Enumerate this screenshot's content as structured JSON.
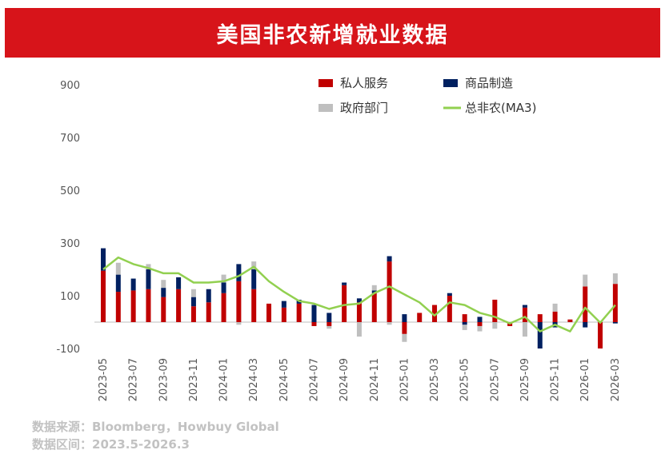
{
  "page": {
    "title": "美国非农新增就业数据"
  },
  "footer": {
    "source": "数据来源：Bloomberg，Howbuy Global",
    "range": "数据区间：2023.5-2026.3"
  },
  "colors": {
    "private": "#c00000",
    "goods": "#002060",
    "government": "#bfbfbf",
    "ma3": "#92d050",
    "title_bg": "#d7141a"
  },
  "chart_data": {
    "type": "bar",
    "stacked": true,
    "title": "美国非农新增就业数据",
    "ylim": [
      -100,
      900
    ],
    "yticks": [
      -100,
      100,
      300,
      500,
      700,
      900
    ],
    "legend_position": "top-right",
    "x": [
      "2023-05",
      "2023-06",
      "2023-07",
      "2023-08",
      "2023-09",
      "2023-10",
      "2023-11",
      "2023-12",
      "2024-01",
      "2024-02",
      "2024-03",
      "2024-04",
      "2024-05",
      "2024-06",
      "2024-07",
      "2024-08",
      "2024-09",
      "2024-10",
      "2024-11",
      "2024-12",
      "2025-01",
      "2025-02",
      "2025-03",
      "2025-04",
      "2025-05",
      "2025-06",
      "2025-07",
      "2025-08",
      "2025-09",
      "2025-10",
      "2025-11",
      "2025-12",
      "2026-01",
      "2026-02",
      "2026-03"
    ],
    "xtick_labels": [
      "2023-05",
      "2023-07",
      "2023-09",
      "2023-11",
      "2024-01",
      "2024-03",
      "2024-05",
      "2024-07",
      "2024-09",
      "2024-11",
      "2025-01",
      "2025-03",
      "2025-05",
      "2025-07",
      "2025-09",
      "2025-11",
      "2026-01",
      "2026-03"
    ],
    "series": [
      {
        "name": "私人服务",
        "values": [
          195,
          115,
          120,
          125,
          95,
          125,
          60,
          75,
          110,
          155,
          125,
          70,
          55,
          70,
          -15,
          -15,
          140,
          75,
          110,
          230,
          -45,
          35,
          65,
          100,
          30,
          -15,
          85,
          -15,
          55,
          30,
          40,
          10,
          135,
          -100,
          145
        ]
      },
      {
        "name": "商品制造",
        "values": [
          85,
          65,
          45,
          75,
          35,
          45,
          35,
          50,
          40,
          65,
          75,
          0,
          25,
          15,
          65,
          35,
          10,
          15,
          10,
          20,
          30,
          0,
          0,
          10,
          -10,
          20,
          0,
          0,
          10,
          -100,
          -20,
          0,
          -20,
          0,
          -5
        ]
      },
      {
        "name": "政府部门",
        "values": [
          0,
          45,
          0,
          20,
          30,
          0,
          30,
          0,
          30,
          -10,
          30,
          0,
          0,
          0,
          0,
          -10,
          0,
          -55,
          20,
          -10,
          -30,
          0,
          0,
          0,
          -20,
          -20,
          -25,
          0,
          -55,
          0,
          30,
          0,
          45,
          0,
          40
        ]
      },
      {
        "name": "总非农(MA3)",
        "type": "line",
        "values": [
          200,
          245,
          220,
          205,
          185,
          185,
          150,
          150,
          155,
          175,
          210,
          155,
          115,
          80,
          70,
          50,
          65,
          70,
          110,
          135,
          105,
          75,
          25,
          75,
          65,
          35,
          20,
          -5,
          20,
          -35,
          -10,
          -35,
          55,
          -2,
          65
        ]
      }
    ]
  }
}
